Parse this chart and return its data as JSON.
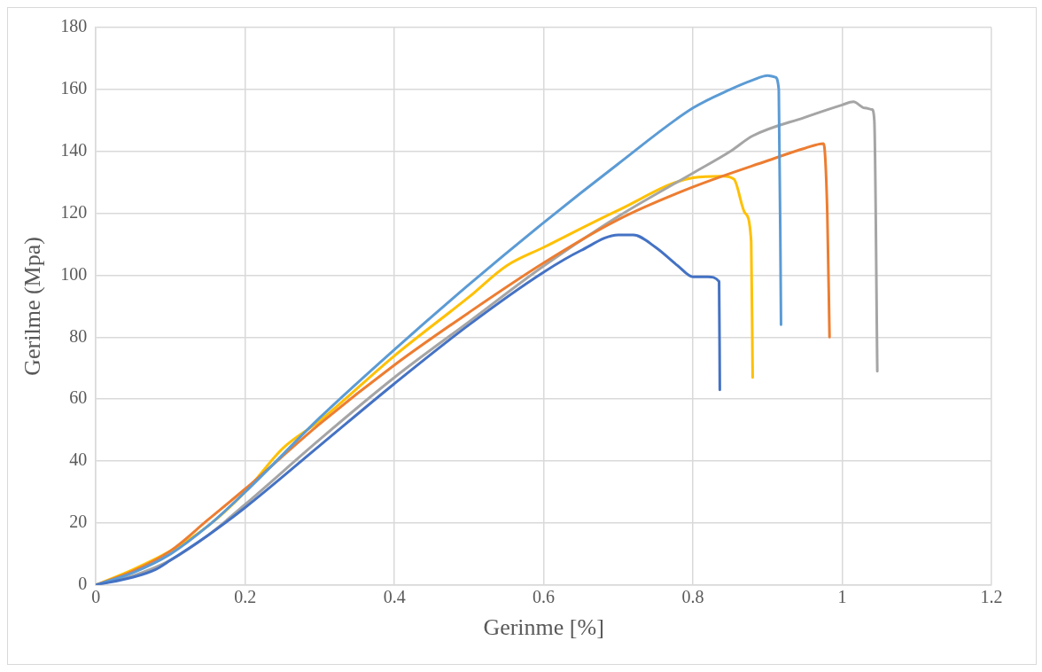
{
  "chart_data": {
    "type": "line",
    "xlabel": "Gerinme [%]",
    "ylabel": "Gerilme (Mpa)",
    "xlim": [
      0,
      1.2
    ],
    "xticks": [
      0,
      0.2,
      0.4,
      0.6,
      0.8,
      1,
      1.2
    ],
    "ylim": [
      0,
      180
    ],
    "yticks": [
      0,
      20,
      40,
      60,
      80,
      100,
      120,
      140,
      160,
      180
    ],
    "grid": true,
    "legend": false,
    "marker": "none",
    "line_style": "solid",
    "series": [
      {
        "color": "#4472c4",
        "x": [
          0,
          0.05,
          0.08,
          0.1,
          0.15,
          0.2,
          0.3,
          0.4,
          0.5,
          0.6,
          0.65,
          0.7,
          0.72,
          0.75,
          0.78,
          0.8,
          0.82,
          0.835,
          0.836
        ],
        "values": [
          0,
          2.5,
          5,
          8,
          16,
          25,
          45,
          65,
          84,
          101,
          108,
          113,
          113,
          109,
          103,
          99.5,
          99.5,
          98,
          63
        ]
      },
      {
        "color": "#5b9bd5",
        "x": [
          0,
          0.05,
          0.1,
          0.15,
          0.2,
          0.3,
          0.4,
          0.5,
          0.6,
          0.7,
          0.8,
          0.85,
          0.88,
          0.9,
          0.91,
          0.915,
          0.918
        ],
        "values": [
          0,
          4,
          10,
          19,
          30,
          54,
          76,
          97,
          117,
          136,
          154,
          160,
          163,
          164.5,
          164,
          160,
          84
        ]
      },
      {
        "color": "#ed7d31",
        "x": [
          0,
          0.05,
          0.1,
          0.15,
          0.2,
          0.3,
          0.4,
          0.5,
          0.6,
          0.7,
          0.8,
          0.9,
          0.95,
          0.975,
          0.98,
          0.983
        ],
        "values": [
          0,
          4.5,
          11,
          21,
          31,
          52,
          71,
          88,
          104,
          118,
          128.5,
          137,
          141,
          142.5,
          120,
          80
        ]
      },
      {
        "color": "#a5a5a5",
        "x": [
          0,
          0.05,
          0.1,
          0.15,
          0.2,
          0.3,
          0.4,
          0.5,
          0.6,
          0.7,
          0.8,
          0.85,
          0.88,
          0.95,
          1.0,
          1.015,
          1.03,
          1.04,
          1.043,
          1.047
        ],
        "values": [
          0,
          3,
          8,
          16,
          26,
          47,
          67,
          85,
          103,
          119,
          133,
          140,
          145,
          151,
          155,
          156,
          154,
          153.5,
          150,
          69
        ]
      },
      {
        "color": "#ffc000",
        "x": [
          0,
          0.05,
          0.1,
          0.15,
          0.2,
          0.25,
          0.3,
          0.4,
          0.5,
          0.55,
          0.6,
          0.7,
          0.8,
          0.84,
          0.855,
          0.87,
          0.878,
          0.88
        ],
        "values": [
          0,
          5,
          11,
          19,
          30,
          44,
          53,
          74,
          93,
          103,
          109,
          121,
          131.5,
          132,
          131,
          120,
          111,
          67
        ]
      }
    ]
  }
}
